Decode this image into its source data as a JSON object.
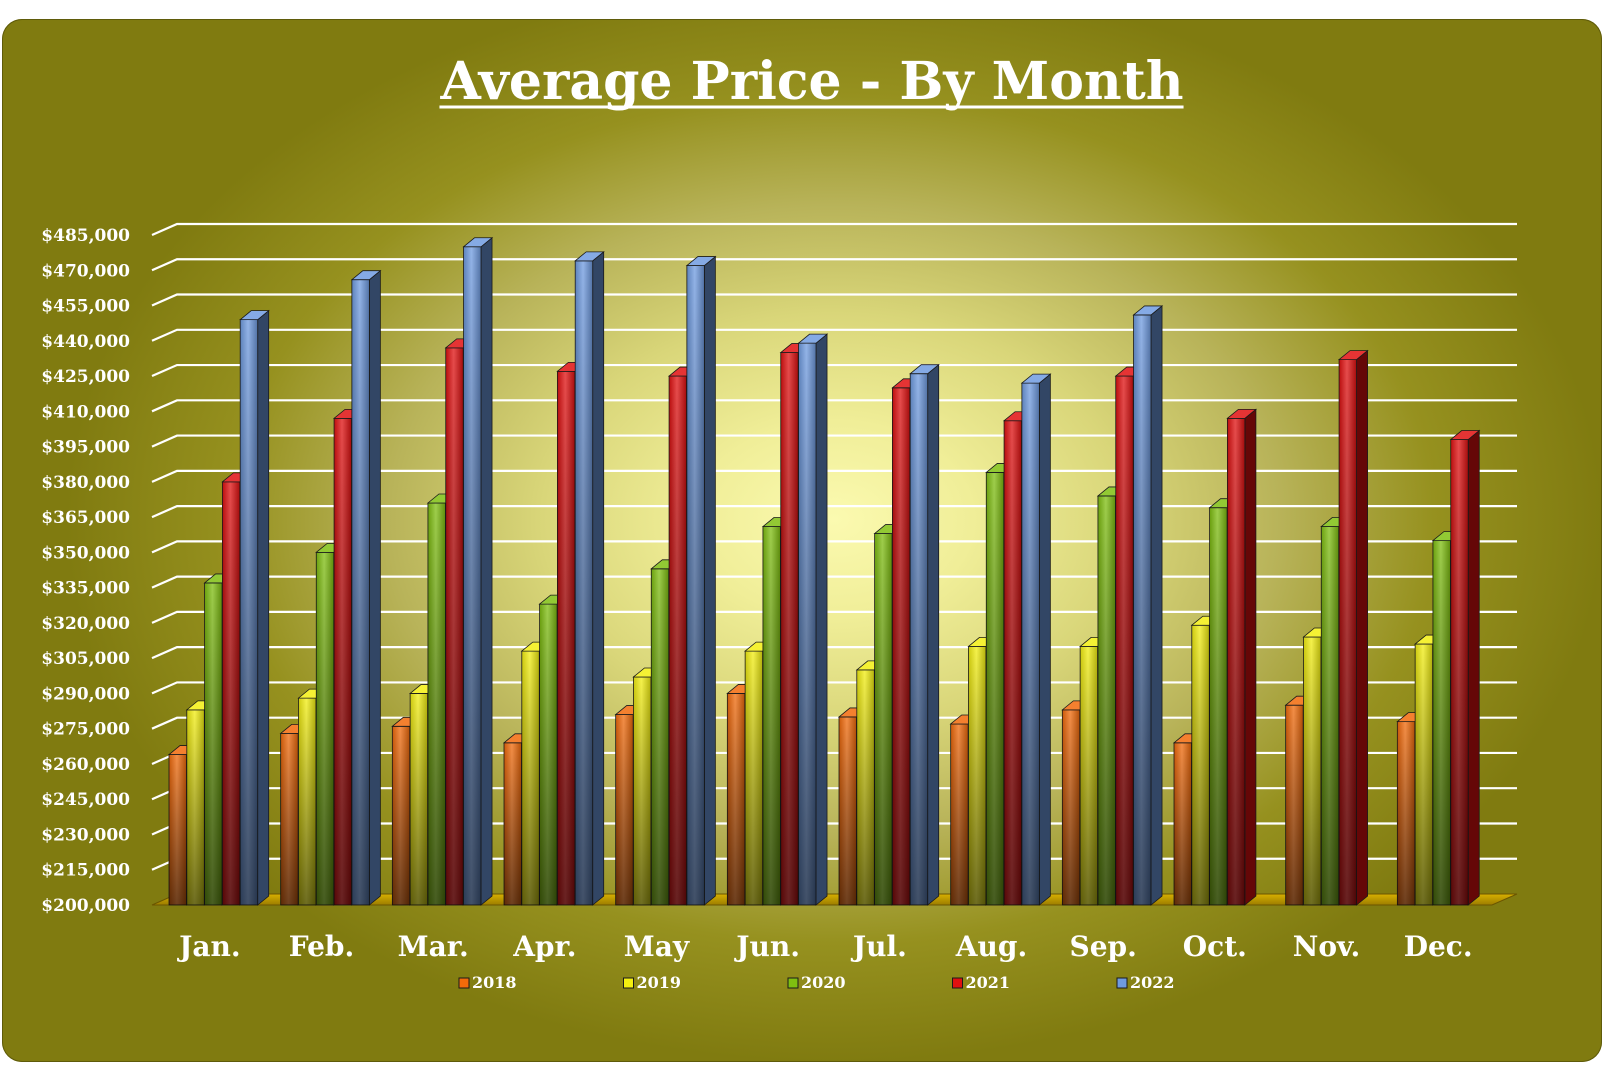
{
  "chart_data": {
    "type": "bar",
    "title": "Average Price - By Month",
    "xlabel": "",
    "ylabel": "",
    "ylim": [
      200000,
      485000
    ],
    "ytick_step": 15000,
    "ytick_labels": [
      "$200,000",
      "$215,000",
      "$230,000",
      "$245,000",
      "$260,000",
      "$275,000",
      "$290,000",
      "$305,000",
      "$320,000",
      "$335,000",
      "$350,000",
      "$365,000",
      "$380,000",
      "$395,000",
      "$410,000",
      "$425,000",
      "$440,000",
      "$455,000",
      "$470,000",
      "$485,000"
    ],
    "categories": [
      "Jan.",
      "Feb.",
      "Mar.",
      "Apr.",
      "May",
      "Jun.",
      "Jul.",
      "Aug.",
      "Sep.",
      "Oct.",
      "Nov.",
      "Dec."
    ],
    "grid": true,
    "legend_position": "bottom",
    "series": [
      {
        "name": "2018",
        "color": "#f26a0a",
        "values": [
          264000,
          273000,
          276000,
          269000,
          281000,
          290000,
          280000,
          277000,
          283000,
          269000,
          285000,
          278000
        ]
      },
      {
        "name": "2019",
        "color": "#f3ef10",
        "values": [
          283000,
          288000,
          290000,
          308000,
          297000,
          308000,
          300000,
          310000,
          310000,
          319000,
          314000,
          311000
        ]
      },
      {
        "name": "2020",
        "color": "#7fbf10",
        "values": [
          337000,
          350000,
          371000,
          328000,
          343000,
          361000,
          358000,
          384000,
          374000,
          369000,
          361000,
          355000
        ]
      },
      {
        "name": "2021",
        "color": "#e01010",
        "values": [
          380000,
          407000,
          437000,
          427000,
          425000,
          435000,
          420000,
          406000,
          425000,
          407000,
          432000,
          398000
        ]
      },
      {
        "name": "2022",
        "color": "#6f9be0",
        "values": [
          449000,
          466000,
          480000,
          474000,
          472000,
          439000,
          426000,
          422000,
          451000,
          null,
          null,
          null
        ]
      }
    ]
  }
}
